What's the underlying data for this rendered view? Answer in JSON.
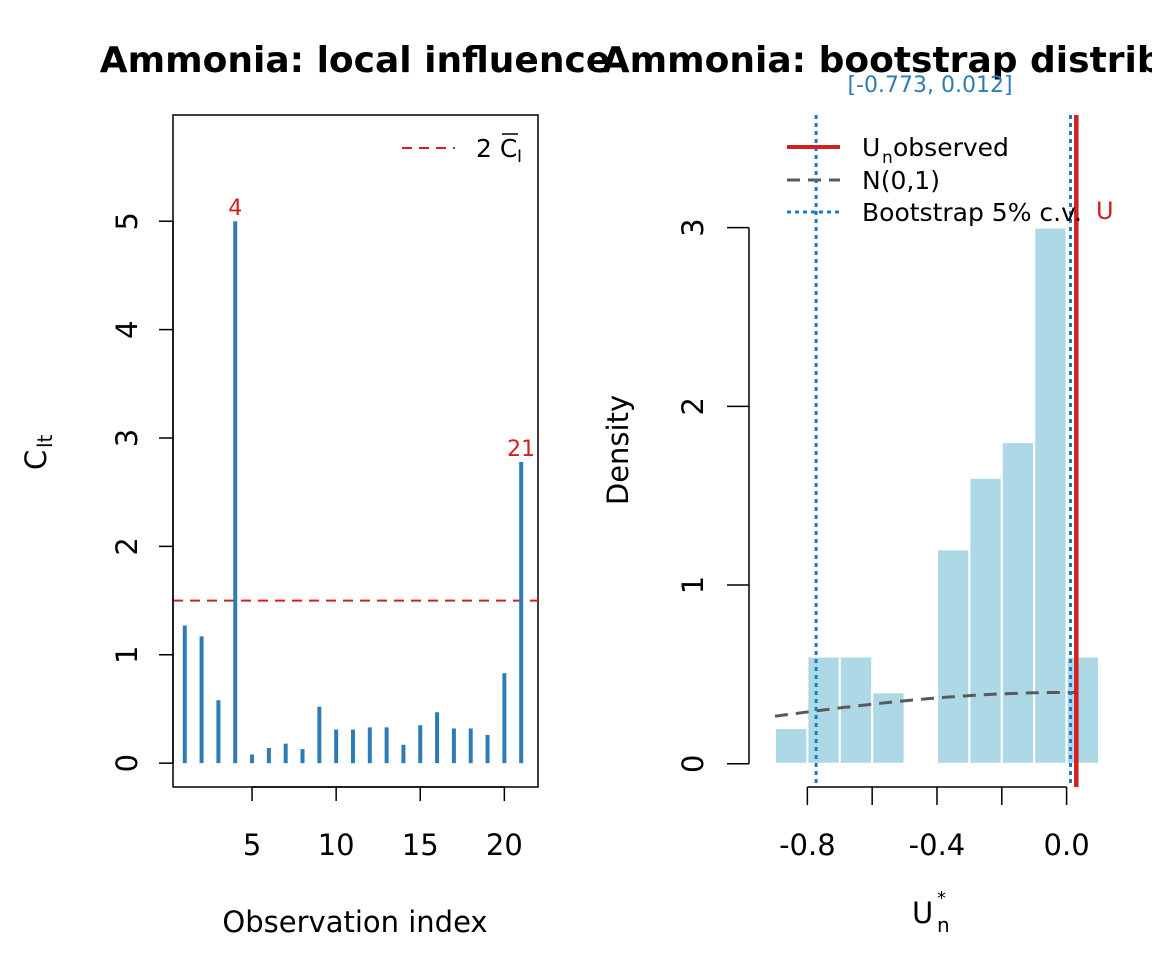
{
  "colors": {
    "stem": "#2e7cb6",
    "threshold": "#d21f1f",
    "hist_fill": "#add8e6",
    "observed": "#d21f1f",
    "normal": "#5a5a5a",
    "bootstrap": "#1f78c1",
    "interval_text": "#2e7cb6"
  },
  "chart_data": [
    {
      "type": "bar",
      "title": "Ammonia: local influence",
      "xlabel": "Observation index",
      "ylabel_main": "C",
      "ylabel_sub": "lt",
      "x": [
        1,
        2,
        3,
        4,
        5,
        6,
        7,
        8,
        9,
        10,
        11,
        12,
        13,
        14,
        15,
        16,
        17,
        18,
        19,
        20,
        21
      ],
      "values": [
        1.27,
        1.17,
        0.58,
        5.0,
        0.08,
        0.14,
        0.18,
        0.13,
        0.52,
        0.31,
        0.31,
        0.33,
        0.33,
        0.17,
        0.35,
        0.47,
        0.32,
        0.32,
        0.26,
        0.83,
        2.78
      ],
      "xlim": [
        0.3,
        22
      ],
      "ylim": [
        -0.22,
        5.98
      ],
      "xticks": [
        "5",
        "10",
        "15",
        "20"
      ],
      "yticks": [
        "0",
        "1",
        "2",
        "3",
        "4",
        "5"
      ],
      "threshold": {
        "value": 1.5,
        "label_main": "2 C",
        "label_sub": "I"
      },
      "point_labels": [
        {
          "x": 4,
          "y": 5.0,
          "text": "4"
        },
        {
          "x": 21,
          "y": 2.78,
          "text": "21"
        }
      ],
      "grid": false,
      "legend_position": "top-right"
    },
    {
      "type": "bar",
      "title": "Ammonia: bootstrap distribution",
      "subtitle": "[-0.773, 0.012]",
      "xlabel_main": "U",
      "xlabel_sub": "n",
      "xlabel_sup": "*",
      "ylabel": "Density",
      "bins": [
        {
          "from": -0.9,
          "to": -0.8,
          "density": 0.2
        },
        {
          "from": -0.8,
          "to": -0.7,
          "density": 0.6
        },
        {
          "from": -0.7,
          "to": -0.6,
          "density": 0.6
        },
        {
          "from": -0.6,
          "to": -0.5,
          "density": 0.4
        },
        {
          "from": -0.5,
          "to": -0.4,
          "density": 0.0
        },
        {
          "from": -0.4,
          "to": -0.3,
          "density": 1.2
        },
        {
          "from": -0.3,
          "to": -0.2,
          "density": 1.6
        },
        {
          "from": -0.2,
          "to": -0.1,
          "density": 1.8
        },
        {
          "from": -0.1,
          "to": 0.0,
          "density": 3.0
        },
        {
          "from": 0.0,
          "to": 0.1,
          "density": 0.6
        }
      ],
      "observed": {
        "value": 0.03,
        "label": "U"
      },
      "bootstrap_cv": [
        -0.773,
        0.012
      ],
      "normal_curve": {
        "from": -0.9,
        "to": 0.03
      },
      "xlim": [
        -0.94,
        0.1
      ],
      "ylim": [
        -0.13,
        3.63
      ],
      "xticks": [
        {
          "v": -0.8,
          "label": "-0.8"
        },
        {
          "v": -0.6,
          "label": ""
        },
        {
          "v": -0.4,
          "label": "-0.4"
        },
        {
          "v": -0.2,
          "label": ""
        },
        {
          "v": 0.0,
          "label": "0.0"
        }
      ],
      "yticks": [
        "0",
        "1",
        "2",
        "3"
      ],
      "legend": [
        {
          "main": "U",
          "sub": "n",
          "rest": " observed",
          "style": "observed"
        },
        {
          "main": "N(0,1)",
          "sub": "",
          "rest": "",
          "style": "normal"
        },
        {
          "main": "Bootstrap 5% c.v.",
          "sub": "",
          "rest": "",
          "style": "bootstrap"
        }
      ],
      "grid": false,
      "legend_position": "top-left"
    }
  ]
}
